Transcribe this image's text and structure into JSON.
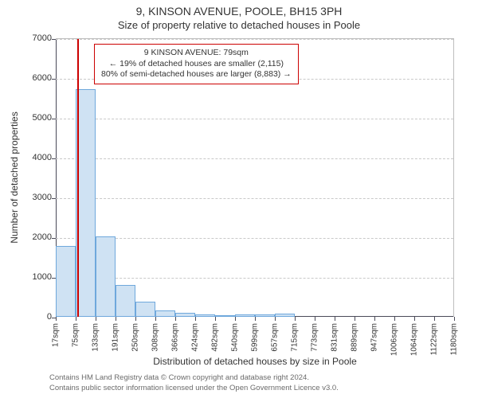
{
  "title": "9, KINSON AVENUE, POOLE, BH15 3PH",
  "subtitle": "Size of property relative to detached houses in Poole",
  "y_axis_label": "Number of detached properties",
  "x_axis_label": "Distribution of detached houses by size in Poole",
  "credit_line1": "Contains HM Land Registry data © Crown copyright and database right 2024.",
  "credit_line2": "Contains public sector information licensed under the Open Government Licence v3.0.",
  "annotation": {
    "line1": "9 KINSON AVENUE: 79sqm",
    "line2": "← 19% of detached houses are smaller (2,115)",
    "line3": "80% of semi-detached houses are larger (8,883) →"
  },
  "chart": {
    "type": "histogram",
    "bar_fill": "#cfe2f3",
    "bar_border": "#6fa8dc",
    "marker_color": "#cc0000",
    "anno_border": "#cc0000",
    "grid_color": "#c9c9c9",
    "axis_color": "#4a4a58",
    "background_color": "#ffffff",
    "x_tick_fontsize": 10,
    "y_tick_fontsize": 11,
    "label_fontsize": 12,
    "title_fontsize": 14,
    "x_min_sqm": 17,
    "x_max_sqm": 1180,
    "x_tick_labels": [
      "17sqm",
      "75sqm",
      "133sqm",
      "191sqm",
      "250sqm",
      "308sqm",
      "366sqm",
      "424sqm",
      "482sqm",
      "540sqm",
      "599sqm",
      "657sqm",
      "715sqm",
      "773sqm",
      "831sqm",
      "889sqm",
      "947sqm",
      "1006sqm",
      "1064sqm",
      "1122sqm",
      "1180sqm"
    ],
    "y_min": 0,
    "y_max": 7000,
    "y_tick_step": 1000,
    "bar_values": [
      1780,
      5720,
      2020,
      800,
      380,
      170,
      100,
      60,
      50,
      55,
      60,
      80,
      0,
      0,
      0,
      0,
      0,
      0,
      0,
      0
    ],
    "marker_sqm": 79
  }
}
